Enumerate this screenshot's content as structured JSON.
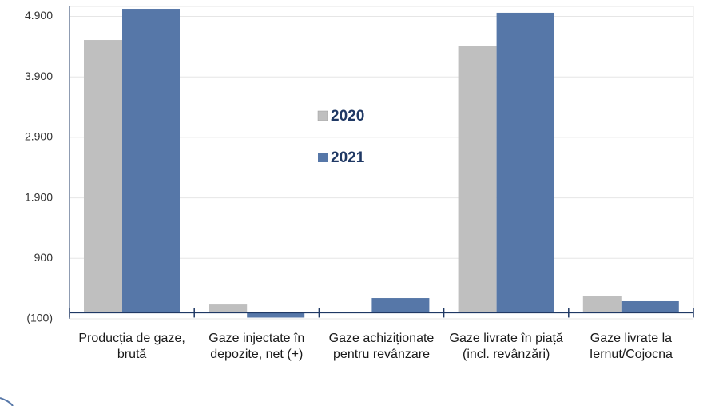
{
  "chart_data": {
    "type": "bar",
    "categories": [
      "Producția de gaze, brută",
      "Gaze injectate în depozite, net (+)",
      "Gaze achiziționate pentru revânzare",
      "Gaze livrate în piață (incl. revânzări)",
      "Gaze livrate la Iernut/Cojocna"
    ],
    "series": [
      {
        "name": "2020",
        "color": "#bfbfbf",
        "values": [
          4510,
          150,
          null,
          4405,
          283
        ]
      },
      {
        "name": "2021",
        "color": "#5677a8",
        "values": [
          5025,
          -80,
          243,
          4960,
          204
        ]
      }
    ],
    "ylim": [
      -100,
      5065
    ],
    "yticks": [
      {
        "value": -100,
        "label": "(100)"
      },
      900,
      {
        "value": 1900,
        "label": "1.900"
      },
      {
        "value": 2900,
        "label": "2.900"
      },
      {
        "value": 3900,
        "label": "3.900"
      },
      {
        "value": 4900,
        "label": "4.900"
      }
    ],
    "grid": true
  }
}
